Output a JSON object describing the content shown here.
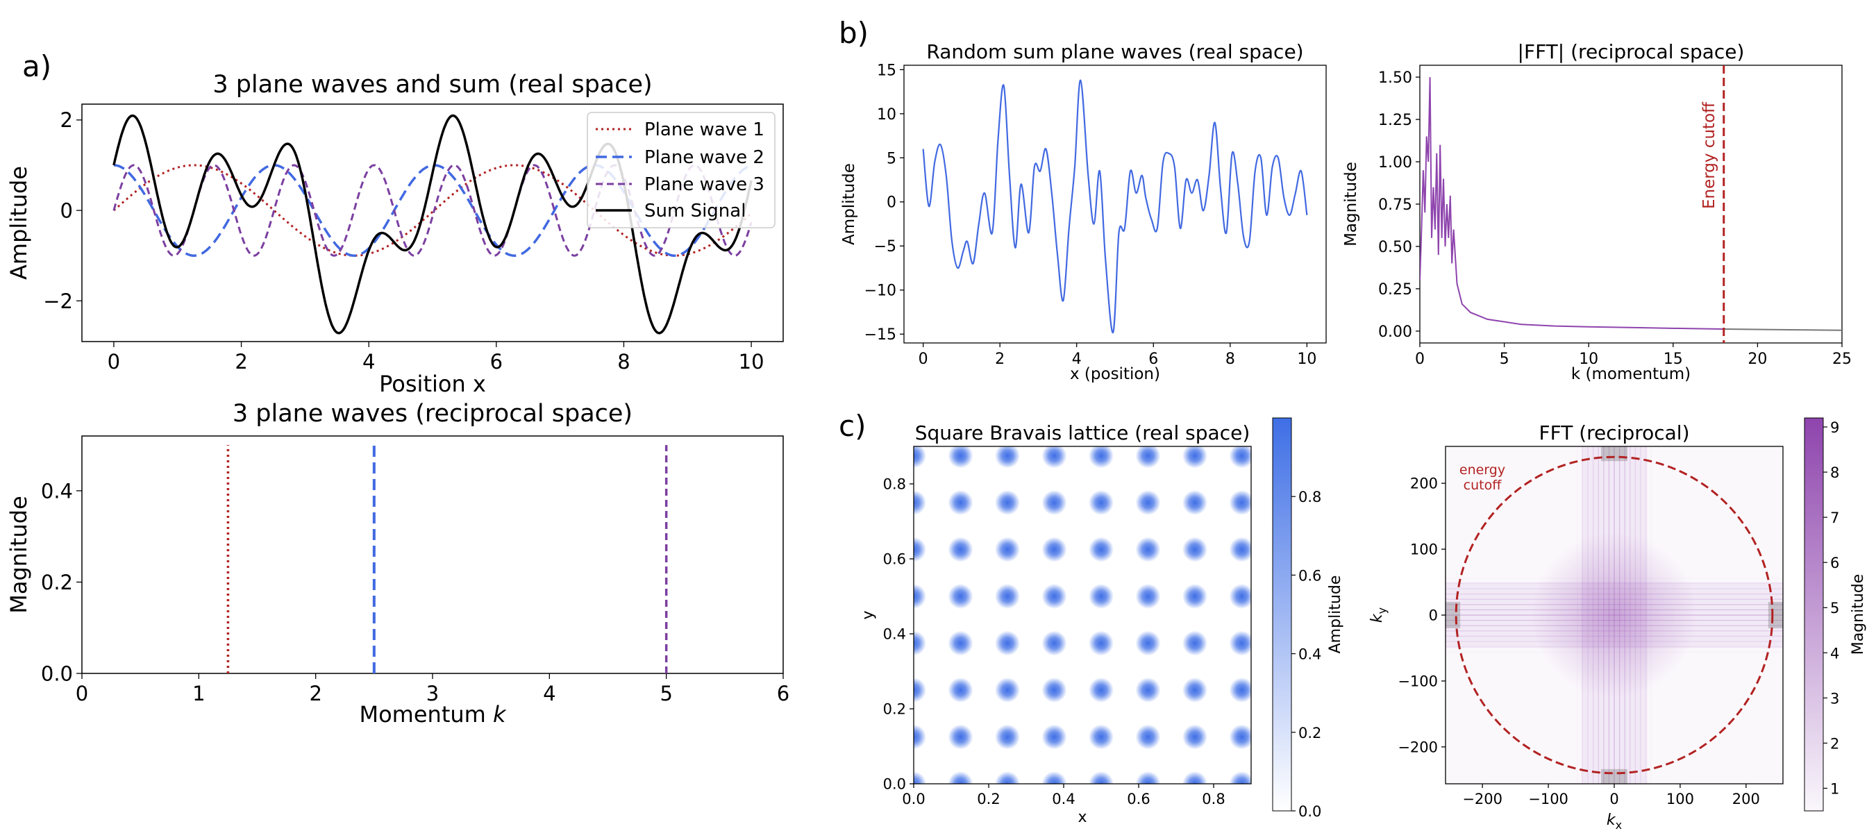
{
  "panel_labels": {
    "a": "a)",
    "b": "b)",
    "c": "c)"
  },
  "colors": {
    "wave1": "#b22222",
    "wave2": "#4169e1",
    "wave3": "#7b3fa0",
    "sum": "#000000",
    "fft_line": "#8e44ad",
    "cutoff": "#b22222",
    "lattice": "#3f6fe6",
    "fft2d": "#8e44ad"
  },
  "chart_data": [
    {
      "id": "a_top",
      "type": "line",
      "title": "3 plane waves and sum (real space)",
      "xlabel": "Position x",
      "ylabel": "Amplitude",
      "xlim": [
        -0.5,
        10.5
      ],
      "ylim": [
        -2.9,
        2.35
      ],
      "xticks": [
        0,
        2,
        4,
        6,
        8,
        10
      ],
      "yticks": [
        -2,
        0,
        2
      ],
      "tick_labels_x": [
        "0",
        "2",
        "4",
        "6",
        "8",
        "10"
      ],
      "tick_labels_y": [
        "−2",
        "0",
        "2"
      ],
      "legend_position": "top-right",
      "grid": false,
      "series": [
        {
          "name": "Plane wave 1",
          "function": "sin",
          "k": 1.25,
          "style": "dotted"
        },
        {
          "name": "Plane wave 2",
          "function": "cos",
          "k": 2.5,
          "style": "dashed"
        },
        {
          "name": "Plane wave 3",
          "function": "sin",
          "k": 5.0,
          "style": "dashdot"
        },
        {
          "name": "Sum Signal",
          "function": "sum",
          "style": "solid"
        }
      ],
      "x_range": [
        0,
        10
      ]
    },
    {
      "id": "a_bottom",
      "type": "line",
      "title": "3 plane waves (reciprocal space)",
      "xlabel": "Momentum k",
      "ylabel": "Magnitude",
      "xlim": [
        0,
        6
      ],
      "ylim": [
        0,
        0.52
      ],
      "xticks": [
        0,
        1,
        2,
        3,
        4,
        5,
        6
      ],
      "yticks": [
        0.0,
        0.2,
        0.4
      ],
      "tick_labels_x": [
        "0",
        "1",
        "2",
        "3",
        "4",
        "5",
        "6"
      ],
      "tick_labels_y": [
        "0.0",
        "0.2",
        "0.4"
      ],
      "grid": false,
      "lines": [
        {
          "k": 1.25,
          "magnitude": 0.5,
          "style": "dotted",
          "series": "Plane wave 1"
        },
        {
          "k": 2.5,
          "magnitude": 0.5,
          "style": "dashed",
          "series": "Plane wave 2"
        },
        {
          "k": 5.0,
          "magnitude": 0.5,
          "style": "dashdot",
          "series": "Plane wave 3"
        }
      ]
    },
    {
      "id": "b_left",
      "type": "line",
      "title": "Random sum plane waves (real space)",
      "xlabel": "x (position)",
      "ylabel": "Amplitude",
      "xlim": [
        -0.5,
        10.5
      ],
      "ylim": [
        -16,
        15.5
      ],
      "xticks": [
        0,
        2,
        4,
        6,
        8,
        10
      ],
      "yticks": [
        -15,
        -10,
        -5,
        0,
        5,
        10,
        15
      ],
      "tick_labels_x": [
        "0",
        "2",
        "4",
        "6",
        "8",
        "10"
      ],
      "tick_labels_y": [
        "−15",
        "−10",
        "−5",
        "0",
        "5",
        "10",
        "15"
      ],
      "grid": false,
      "x": [
        0,
        0.15,
        0.3,
        0.45,
        0.6,
        0.75,
        0.9,
        1.05,
        1.15,
        1.3,
        1.45,
        1.6,
        1.8,
        1.95,
        2.1,
        2.25,
        2.4,
        2.55,
        2.75,
        2.9,
        3.05,
        3.2,
        3.35,
        3.5,
        3.65,
        3.8,
        3.95,
        4.1,
        4.3,
        4.45,
        4.6,
        4.75,
        4.95,
        5.1,
        5.25,
        5.4,
        5.55,
        5.7,
        5.8,
        5.95,
        6.1,
        6.25,
        6.4,
        6.55,
        6.7,
        6.85,
        7.0,
        7.15,
        7.3,
        7.45,
        7.6,
        7.75,
        7.9,
        8.05,
        8.2,
        8.35,
        8.5,
        8.65,
        8.8,
        8.95,
        9.1,
        9.25,
        9.4,
        9.55,
        9.7,
        9.85,
        10.0
      ],
      "y": [
        6,
        -0.5,
        4.5,
        6.5,
        3,
        -4.5,
        -7.5,
        -5.5,
        -4.5,
        -7,
        -2.5,
        1,
        -3.5,
        7,
        13.2,
        3,
        -5.2,
        2,
        -3.5,
        4,
        3.5,
        6,
        1,
        -6,
        -11.2,
        -3,
        4,
        13.8,
        3,
        -2.5,
        3.5,
        -6.5,
        -14.8,
        -3.5,
        -3,
        3.5,
        1,
        3,
        0.5,
        -2,
        -3,
        4.5,
        5.5,
        4,
        -3,
        2.5,
        1,
        2.5,
        -1,
        3,
        9,
        1.5,
        -3.5,
        5.5,
        2,
        -4,
        -4.5,
        3.5,
        5,
        -1.5,
        4,
        5,
        0.5,
        -1.5,
        1,
        3.5,
        -1.5
      ]
    },
    {
      "id": "b_right",
      "type": "line",
      "title": "|FFT| (reciprocal space)",
      "xlabel": "k (momentum)",
      "ylabel": "Magnitude",
      "xlim": [
        0,
        25
      ],
      "ylim": [
        -0.07,
        1.57
      ],
      "xticks": [
        0,
        5,
        10,
        15,
        20,
        25
      ],
      "yticks": [
        0.0,
        0.25,
        0.5,
        0.75,
        1.0,
        1.25,
        1.5
      ],
      "tick_labels_x": [
        "0",
        "5",
        "10",
        "15",
        "20",
        "25"
      ],
      "tick_labels_y": [
        "0.00",
        "0.25",
        "0.50",
        "0.75",
        "1.00",
        "1.25",
        "1.50"
      ],
      "grid": false,
      "cutoff_k": 18.0,
      "cutoff_label": "Energy cutoff",
      "x": [
        0,
        0.1,
        0.2,
        0.3,
        0.4,
        0.5,
        0.6,
        0.7,
        0.8,
        0.9,
        1.0,
        1.1,
        1.2,
        1.3,
        1.4,
        1.5,
        1.6,
        1.7,
        1.8,
        1.9,
        2.0,
        2.2,
        2.5,
        3.0,
        4.0,
        6.0,
        8.0,
        10.0,
        13.0,
        16.0,
        18.0,
        20.0,
        25.0
      ],
      "y": [
        0.3,
        0.6,
        0.95,
        0.7,
        1.15,
        1.0,
        1.5,
        0.55,
        0.85,
        0.6,
        1.05,
        0.45,
        1.1,
        0.55,
        0.9,
        0.5,
        0.75,
        0.55,
        0.8,
        0.4,
        0.6,
        0.28,
        0.16,
        0.11,
        0.07,
        0.04,
        0.03,
        0.025,
        0.02,
        0.015,
        0.012,
        0.01,
        0.005
      ],
      "x_after_cutoff": [
        18.0,
        25.0
      ],
      "y_after_cutoff": [
        0.012,
        0.005
      ]
    },
    {
      "id": "c_left",
      "type": "heatmap",
      "title": "Square Bravais lattice (real space)",
      "xlabel": "x",
      "ylabel": "y",
      "xlim": [
        0,
        0.9
      ],
      "ylim": [
        0,
        0.9
      ],
      "xticks": [
        0.0,
        0.2,
        0.4,
        0.6,
        0.8
      ],
      "yticks": [
        0.0,
        0.2,
        0.4,
        0.6,
        0.8
      ],
      "tick_labels_x": [
        "0.0",
        "0.2",
        "0.4",
        "0.6",
        "0.8"
      ],
      "tick_labels_y": [
        "0.0",
        "0.2",
        "0.4",
        "0.6",
        "0.8"
      ],
      "lattice_constant": 0.125,
      "colorbar": {
        "label": "Amplitude",
        "range": [
          0,
          1
        ],
        "ticks": [
          0.0,
          0.2,
          0.4,
          0.6,
          0.8
        ],
        "tick_labels": [
          "0.0",
          "0.2",
          "0.4",
          "0.6",
          "0.8"
        ]
      }
    },
    {
      "id": "c_right",
      "type": "heatmap",
      "title": "FFT (reciprocal)",
      "xlabel": "k_x",
      "ylabel": "k_y",
      "xlim": [
        -256,
        256
      ],
      "ylim": [
        -256,
        256
      ],
      "xticks": [
        -200,
        -100,
        0,
        100,
        200
      ],
      "yticks": [
        -200,
        -100,
        0,
        100,
        200
      ],
      "tick_labels_x": [
        "−200",
        "−100",
        "0",
        "100",
        "200"
      ],
      "tick_labels_y": [
        "−200",
        "−100",
        "0",
        "100",
        "200"
      ],
      "cutoff_radius": 240,
      "cutoff_label_lines": [
        "energy",
        "cutoff"
      ],
      "colorbar": {
        "label": "Magnitude",
        "range": [
          0.5,
          9.2
        ],
        "ticks": [
          1,
          2,
          3,
          4,
          5,
          6,
          7,
          8,
          9
        ],
        "tick_labels": [
          "1",
          "2",
          "3",
          "4",
          "5",
          "6",
          "7",
          "8",
          "9"
        ]
      }
    }
  ]
}
